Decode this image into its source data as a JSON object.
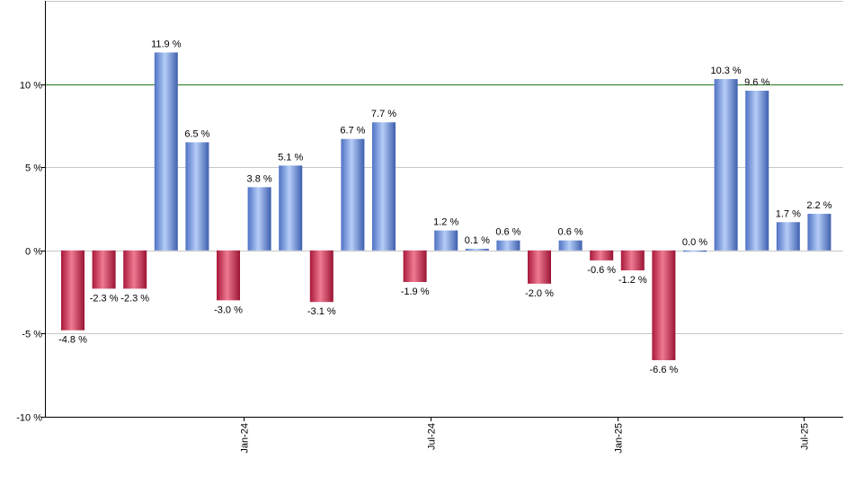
{
  "chart_data": {
    "type": "bar",
    "title": "",
    "xlabel": "",
    "ylabel": "",
    "ylim": [
      -10,
      15
    ],
    "y_ticks": [
      -10,
      -5,
      0,
      5,
      10
    ],
    "y_tick_labels": [
      "-10 %",
      "-5 %",
      "0 %",
      "5 %",
      "10 %"
    ],
    "reference_line": 10,
    "values": [
      -4.8,
      -2.3,
      -2.3,
      11.9,
      6.5,
      -3.0,
      3.8,
      5.1,
      -3.1,
      6.7,
      7.7,
      -1.9,
      1.2,
      0.1,
      0.6,
      -2.0,
      0.6,
      -0.6,
      -1.2,
      -6.6,
      0.0,
      10.3,
      9.6,
      1.7,
      2.2
    ],
    "value_labels": [
      "-4.8 %",
      "-2.3 %",
      "-2.3 %",
      "11.9 %",
      "6.5 %",
      "-3.0 %",
      "3.8 %",
      "5.1 %",
      "-3.1 %",
      "6.7 %",
      "7.7 %",
      "-1.9 %",
      "1.2 %",
      "0.1 %",
      "0.6 %",
      "-2.0 %",
      "0.6 %",
      "-0.6 %",
      "-1.2 %",
      "-6.6 %",
      "0.0 %",
      "10.3 %",
      "9.6 %",
      "1.7 %",
      "2.2 %"
    ],
    "x_tick_labels": [
      {
        "index": 5.5,
        "label": "Jan-24"
      },
      {
        "index": 11.5,
        "label": "Jul-24"
      },
      {
        "index": 17.5,
        "label": "Jan-25"
      },
      {
        "index": 23.5,
        "label": "Jul-25"
      }
    ],
    "colors": {
      "positive": "#7d9fe0",
      "negative": "#cf3a5c",
      "reference_line": "#1f7a1f",
      "grid": "#c8c8c8"
    }
  }
}
